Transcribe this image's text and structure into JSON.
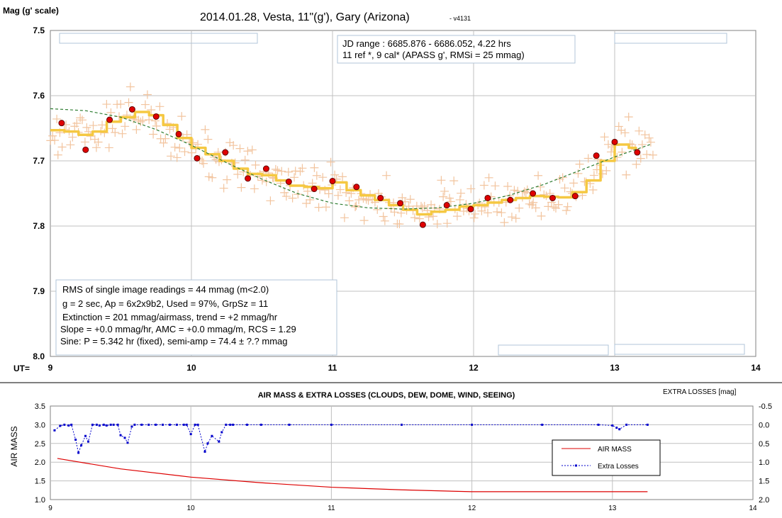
{
  "chart_data": [
    {
      "type": "scatter",
      "title": "2014.01.28, Vesta, 11\"(g'), Gary (Arizona)",
      "version": "- v4131",
      "ylabel": "Mag (g' scale)",
      "xlabel": "UT=",
      "xlim": [
        9,
        14
      ],
      "ylim": [
        7.5,
        8.0
      ],
      "y_inverted": true,
      "x_ticks": [
        "9",
        "10",
        "11",
        "12",
        "13",
        "14"
      ],
      "y_ticks": [
        "7.5",
        "7.6",
        "7.7",
        "7.8",
        "7.9",
        "8.0"
      ],
      "grid": true,
      "info_box": [
        "JD range : 6685.876 - 6686.052, 4.22 hrs",
        "11  ref *, 9 cal* (APASS g', RMSi = 25 mmag)"
      ],
      "stats_box": [
        "RMS of single image readings = 44 mmag (m<2.0)",
        "g = 2 sec, Ap = 6x2x9b2, Used = 97%, GrpSz = 11",
        "Extinction = 201 mmag/airmass, trend = +2 mmag/hr",
        "Slope = +0.0 mmag/hr, AMC = +0.0 mmag/m, RCS = 1.29",
        "Sine: P = 5.342 hr (fixed), semi-amp = 74.4 ± ?.? mmag"
      ],
      "series": [
        {
          "kind": "group-means",
          "x": [
            9.08,
            9.25,
            9.42,
            9.58,
            9.75,
            9.91,
            10.04,
            10.24,
            10.4,
            10.53,
            10.69,
            10.87,
            11.0,
            11.17,
            11.34,
            11.48,
            11.64,
            11.81,
            11.98,
            12.1,
            12.26,
            12.42,
            12.56,
            12.72,
            12.87,
            13.0,
            13.16
          ],
          "y": [
            7.642,
            7.683,
            7.637,
            7.621,
            7.632,
            7.659,
            7.696,
            7.687,
            7.727,
            7.712,
            7.732,
            7.743,
            7.731,
            7.74,
            7.757,
            7.765,
            7.798,
            7.768,
            7.774,
            7.757,
            7.76,
            7.75,
            7.757,
            7.754,
            7.692,
            7.671,
            7.687
          ]
        },
        {
          "kind": "running-average",
          "x": [
            9.0,
            9.1,
            9.2,
            9.3,
            9.4,
            9.5,
            9.6,
            9.7,
            9.8,
            9.9,
            10.0,
            10.1,
            10.2,
            10.3,
            10.4,
            10.5,
            10.6,
            10.7,
            10.8,
            10.9,
            11.0,
            11.1,
            11.2,
            11.3,
            11.4,
            11.5,
            11.6,
            11.7,
            11.8,
            11.9,
            12.0,
            12.1,
            12.2,
            12.3,
            12.4,
            12.5,
            12.6,
            12.7,
            12.8,
            12.9,
            13.0,
            13.1,
            13.15
          ],
          "y": [
            7.653,
            7.655,
            7.66,
            7.655,
            7.64,
            7.633,
            7.625,
            7.63,
            7.645,
            7.665,
            7.68,
            7.69,
            7.7,
            7.712,
            7.72,
            7.722,
            7.73,
            7.738,
            7.74,
            7.742,
            7.733,
            7.745,
            7.753,
            7.76,
            7.768,
            7.775,
            7.782,
            7.778,
            7.775,
            7.77,
            7.768,
            7.764,
            7.76,
            7.757,
            7.754,
            7.755,
            7.756,
            7.748,
            7.73,
            7.7,
            7.675,
            7.68,
            7.685
          ]
        },
        {
          "kind": "sine-fit",
          "x": [
            9.0,
            9.25,
            9.5,
            9.75,
            10.0,
            10.25,
            10.5,
            10.75,
            11.0,
            11.25,
            11.5,
            11.75,
            12.0,
            12.25,
            12.5,
            12.75,
            13.0,
            13.25
          ],
          "y": [
            7.62,
            7.623,
            7.633,
            7.652,
            7.676,
            7.703,
            7.728,
            7.75,
            7.765,
            7.772,
            7.774,
            7.772,
            7.765,
            7.753,
            7.736,
            7.715,
            7.694,
            7.675
          ]
        }
      ]
    },
    {
      "type": "line",
      "title": "AIR MASS & EXTRA  LOSSES  (CLOUDS,  DEW,  DOME,  WIND,  SEEING)",
      "ylabel": "AIR MASS",
      "y2label": "EXTRA LOSSES [mag]",
      "xlim": [
        9,
        14
      ],
      "ylim": [
        1.0,
        3.5
      ],
      "y2lim": [
        -0.5,
        2.0
      ],
      "y2_inverted": true,
      "x_ticks": [
        "9",
        "10",
        "11",
        "12",
        "13",
        "14"
      ],
      "y_ticks": [
        "1.0",
        "1.5",
        "2.0",
        "2.5",
        "3.0",
        "3.5"
      ],
      "y2_ticks": [
        "-0.5",
        "0.0",
        "0.5",
        "1.0",
        "1.5",
        "2.0"
      ],
      "legend_position": "right",
      "series": [
        {
          "name": "AIR MASS",
          "color": "#dd0000",
          "x": [
            9.05,
            9.5,
            10.0,
            10.5,
            11.0,
            11.5,
            12.0,
            12.5,
            13.0,
            13.25
          ],
          "y": [
            2.1,
            1.82,
            1.6,
            1.45,
            1.33,
            1.26,
            1.21,
            1.21,
            1.21,
            1.21
          ]
        },
        {
          "name": "Extra Losses",
          "color": "#0000cc",
          "x": [
            9.03,
            9.07,
            9.1,
            9.13,
            9.15,
            9.18,
            9.2,
            9.22,
            9.25,
            9.27,
            9.3,
            9.33,
            9.35,
            9.38,
            9.4,
            9.43,
            9.45,
            9.48,
            9.5,
            9.53,
            9.55,
            9.58,
            9.6,
            9.65,
            9.7,
            9.75,
            9.8,
            9.85,
            9.9,
            9.95,
            9.97,
            10.0,
            10.03,
            10.05,
            10.1,
            10.12,
            10.15,
            10.2,
            10.22,
            10.25,
            10.28,
            10.3,
            10.4,
            10.5,
            10.7,
            11.0,
            11.5,
            12.0,
            12.5,
            12.9,
            13.0,
            13.03,
            13.05,
            13.1,
            13.25
          ],
          "y": [
            0.15,
            0.03,
            0.0,
            0.02,
            0.0,
            0.4,
            0.75,
            0.55,
            0.3,
            0.45,
            0.0,
            0.0,
            0.02,
            0.0,
            0.02,
            0.0,
            0.0,
            0.0,
            0.28,
            0.35,
            0.48,
            0.05,
            0.0,
            0.0,
            0.0,
            0.0,
            0.0,
            0.0,
            0.0,
            0.0,
            0.0,
            0.25,
            0.0,
            0.0,
            0.72,
            0.5,
            0.3,
            0.45,
            0.2,
            0.0,
            0.0,
            0.0,
            0.0,
            0.0,
            0.0,
            0.0,
            0.0,
            0.0,
            0.0,
            0.0,
            0.02,
            0.08,
            0.12,
            0.0,
            0.0
          ]
        }
      ]
    }
  ]
}
